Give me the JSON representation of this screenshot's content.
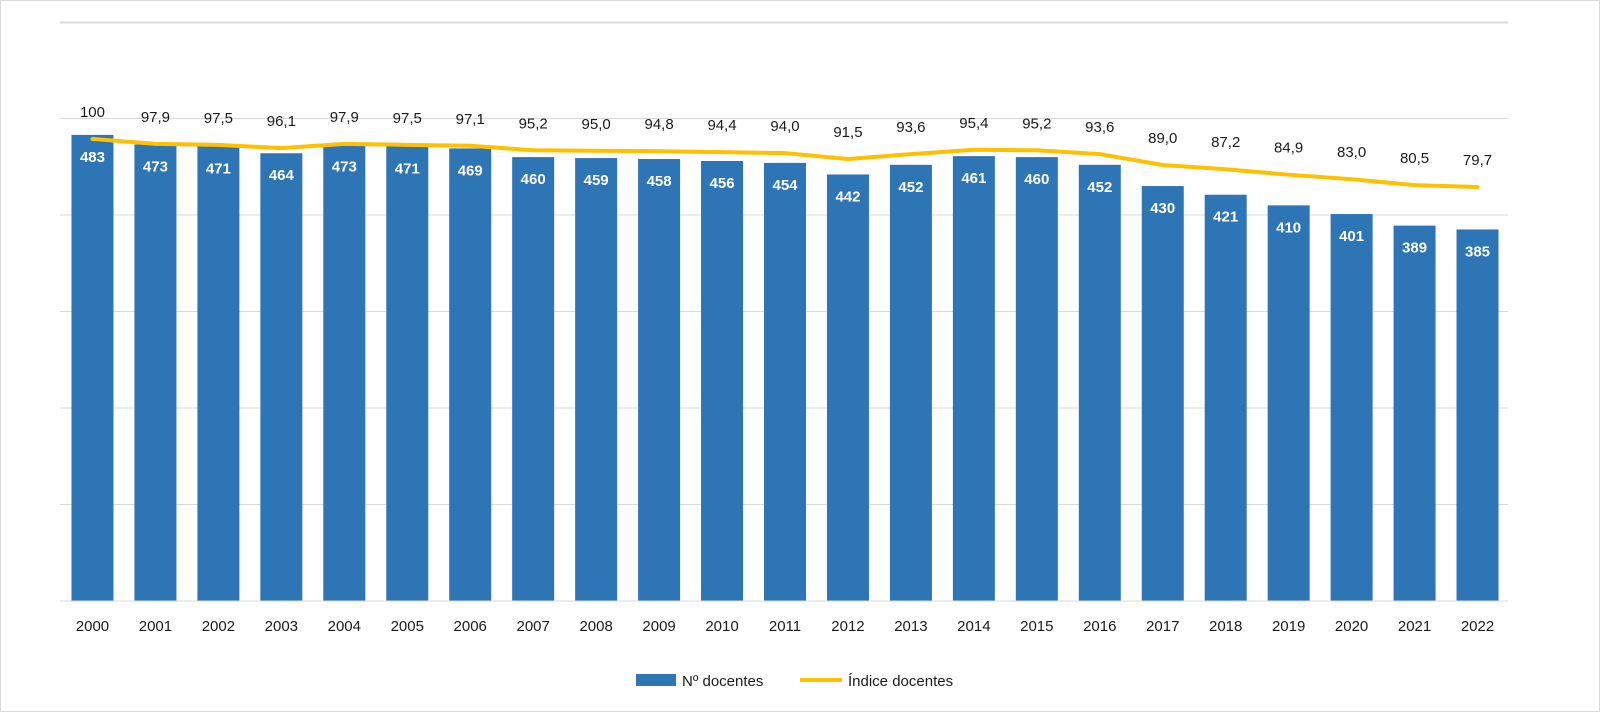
{
  "chart_data": {
    "type": "bar",
    "categories": [
      "2000",
      "2001",
      "2002",
      "2003",
      "2004",
      "2005",
      "2006",
      "2007",
      "2008",
      "2009",
      "2010",
      "2011",
      "2012",
      "2013",
      "2014",
      "2015",
      "2016",
      "2017",
      "2018",
      "2019",
      "2020",
      "2021",
      "2022"
    ],
    "series": [
      {
        "name": "Nº docentes",
        "type": "bar",
        "color": "#2e75b6",
        "values": [
          483,
          473,
          471,
          464,
          473,
          471,
          469,
          460,
          459,
          458,
          456,
          454,
          442,
          452,
          461,
          460,
          452,
          430,
          421,
          410,
          401,
          389,
          385
        ],
        "labels": [
          "483",
          "473",
          "471",
          "464",
          "473",
          "471",
          "469",
          "460",
          "459",
          "458",
          "456",
          "454",
          "442",
          "452",
          "461",
          "460",
          "452",
          "430",
          "421",
          "410",
          "401",
          "389",
          "385"
        ]
      },
      {
        "name": "Índice docentes",
        "type": "line",
        "color": "#ffc000",
        "values": [
          100,
          97.9,
          97.5,
          96.1,
          97.9,
          97.5,
          97.1,
          95.2,
          95.0,
          94.8,
          94.4,
          94.0,
          91.5,
          93.6,
          95.4,
          95.2,
          93.6,
          89.0,
          87.2,
          84.9,
          83.0,
          80.5,
          79.7
        ],
        "labels": [
          "100",
          "97,9",
          "97,5",
          "96,1",
          "97,9",
          "97,5",
          "97,1",
          "95,2",
          "95,0",
          "94,8",
          "94,4",
          "94,0",
          "91,5",
          "93,6",
          "95,4",
          "95,2",
          "93,6",
          "89,0",
          "87,2",
          "84,9",
          "83,0",
          "80,5",
          "79,7"
        ]
      }
    ],
    "ylim": [
      0,
      600
    ],
    "grid": true,
    "legend": "bottom-center"
  }
}
